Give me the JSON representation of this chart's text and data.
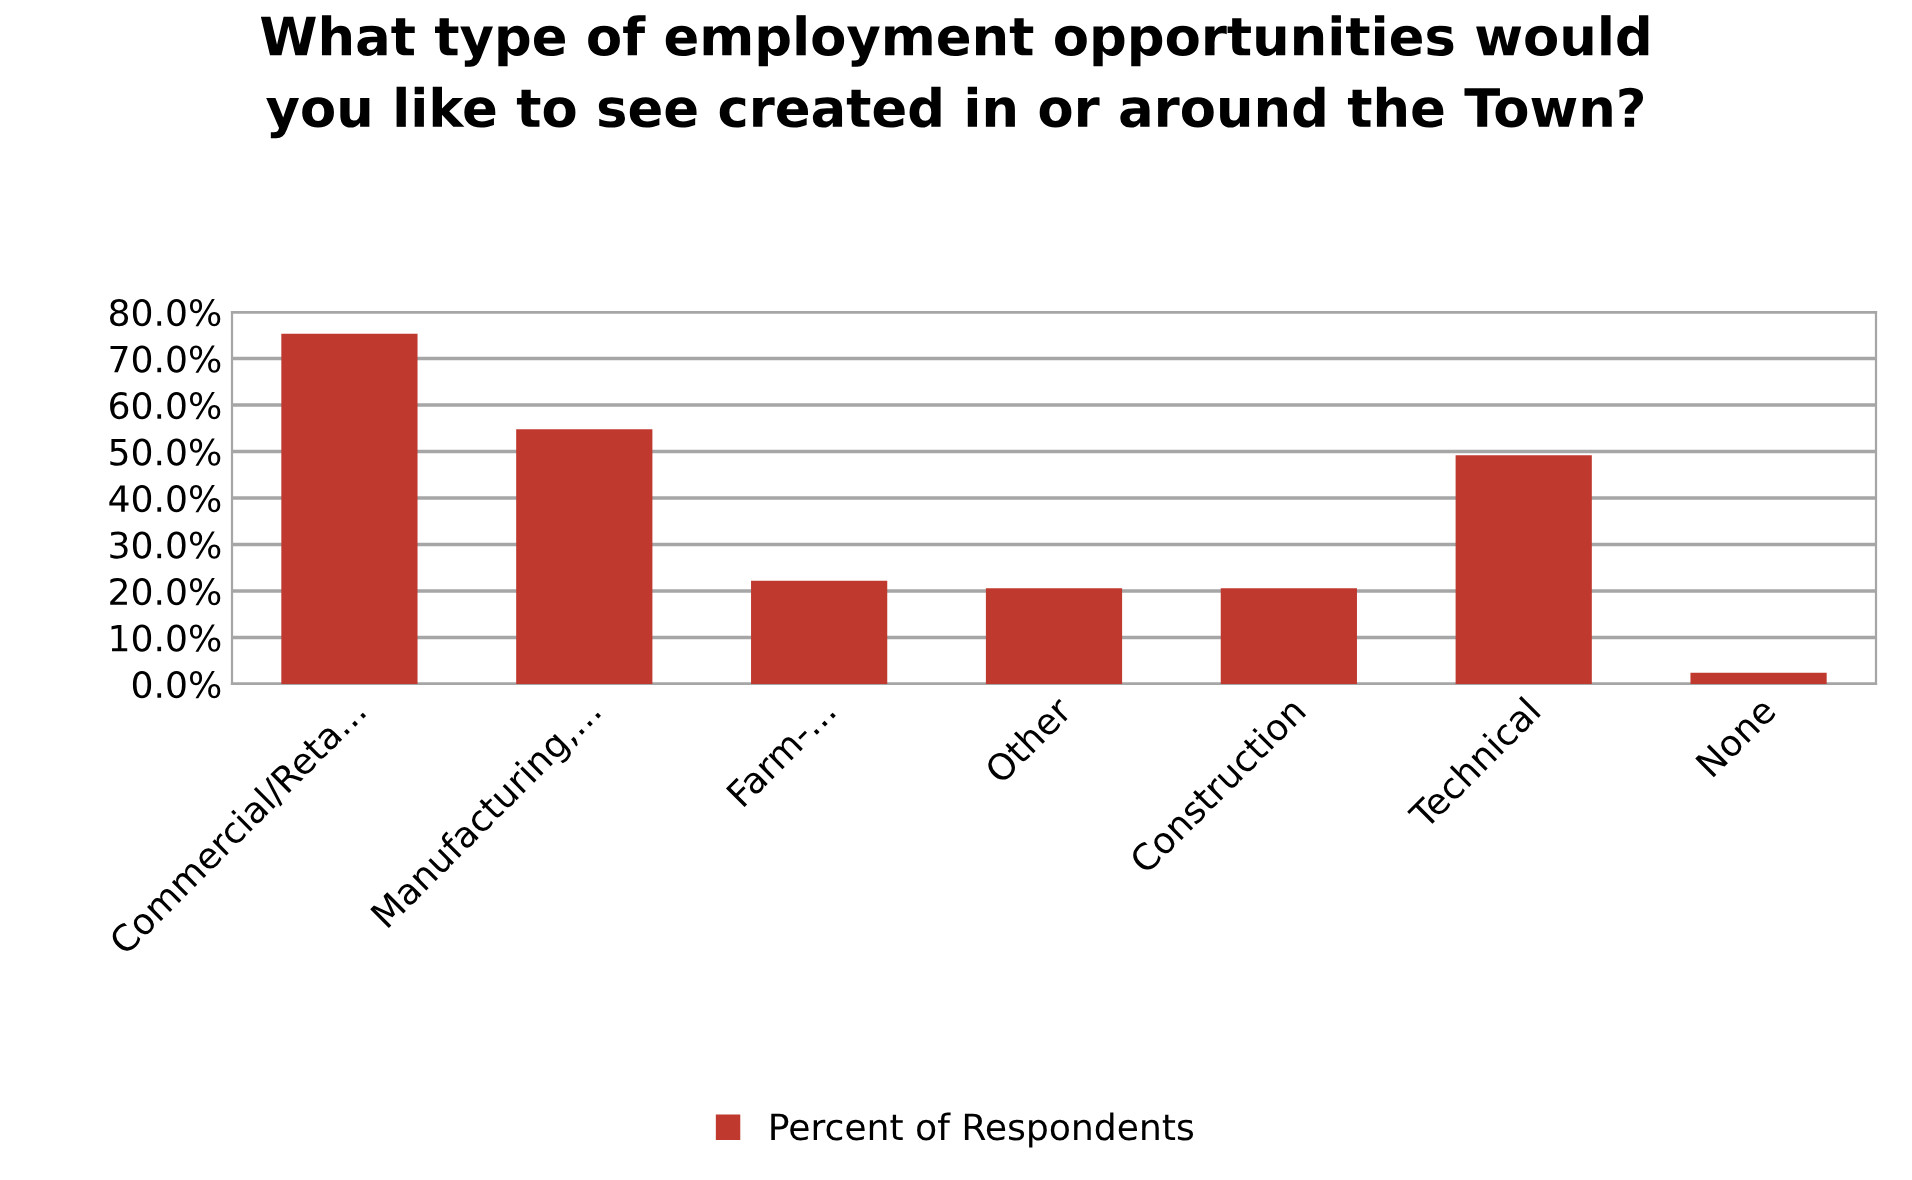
{
  "chart_data": {
    "type": "bar",
    "title": "What type of employment opportunities would\nyou like to see created in or around the Town?",
    "categories": [
      "Commercial/Reta...",
      "Manufacturing,...",
      "Farm-...",
      "Other",
      "Construction",
      "Technical",
      "None"
    ],
    "series": [
      {
        "name": "Percent of Respondents",
        "color": "#c0392f",
        "values": [
          75.3,
          54.8,
          22.2,
          20.6,
          20.6,
          49.2,
          2.4
        ]
      }
    ],
    "ylim": [
      0,
      80
    ],
    "yticks": [
      {
        "value": 0,
        "label": "0.0%"
      },
      {
        "value": 10,
        "label": "10.0%"
      },
      {
        "value": 20,
        "label": "20.0%"
      },
      {
        "value": 30,
        "label": "30.0%"
      },
      {
        "value": 40,
        "label": "40.0%"
      },
      {
        "value": 50,
        "label": "50.0%"
      },
      {
        "value": 60,
        "label": "60.0%"
      },
      {
        "value": 70,
        "label": "70.0%"
      },
      {
        "value": 80,
        "label": "80.0%"
      }
    ],
    "grid": "y",
    "legend": "bottom"
  }
}
